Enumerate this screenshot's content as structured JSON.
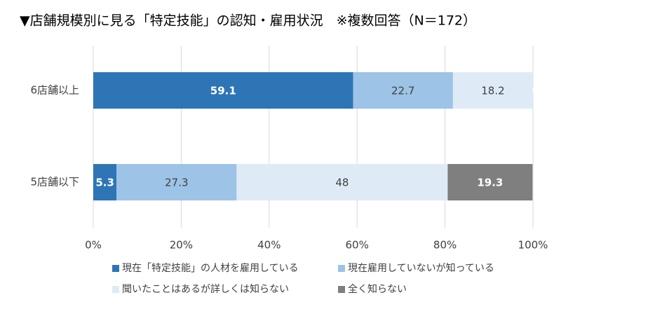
{
  "chart_data": {
    "type": "stacked-barh",
    "title": "▼店舗規模別に見る「特定技能」の認知・雇用状況　※複数回答（N＝172）",
    "categories": [
      "6店舗以上",
      "5店舗以下"
    ],
    "series": [
      {
        "name": "現在「特定技能」の人材を雇用している",
        "color": "#2e75b6",
        "values": [
          59.1,
          5.3
        ]
      },
      {
        "name": "現在雇用していないが知っている",
        "color": "#9dc3e6",
        "values": [
          22.7,
          27.3
        ]
      },
      {
        "name": "聞いたことはあるが詳しくは知らない",
        "color": "#deebf7",
        "values": [
          18.2,
          48
        ]
      },
      {
        "name": "全く知らない",
        "color": "#7f7f7f",
        "values": [
          0,
          19.3
        ]
      }
    ],
    "xlim": [
      0,
      100
    ],
    "xticks": [
      {
        "value": 0,
        "label": "0%"
      },
      {
        "value": 20,
        "label": "20%"
      },
      {
        "value": 40,
        "label": "40%"
      },
      {
        "value": 60,
        "label": "60%"
      },
      {
        "value": 80,
        "label": "80%"
      },
      {
        "value": 100,
        "label": "100%"
      }
    ],
    "grid": true
  }
}
